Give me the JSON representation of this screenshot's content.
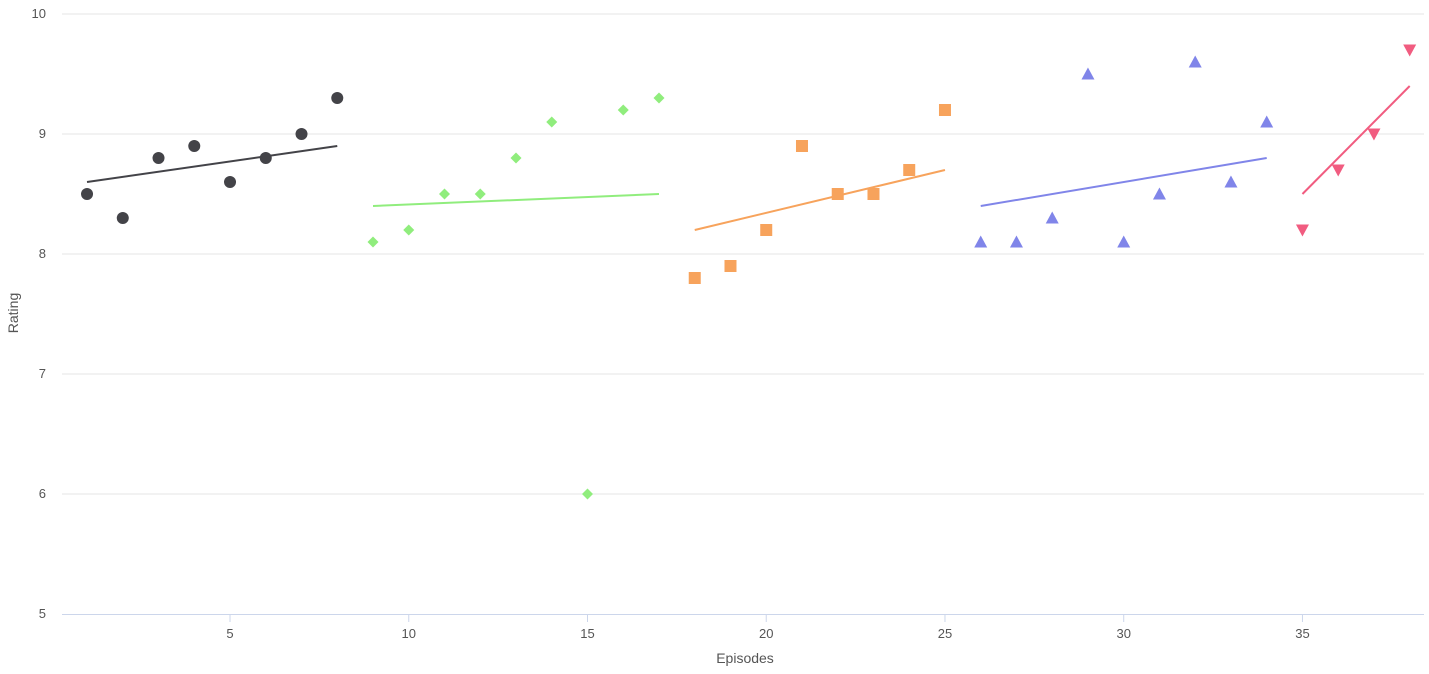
{
  "chart_data": {
    "type": "scatter",
    "xlabel": "Episodes",
    "ylabel": "Rating",
    "xlim": [
      0.3,
      38.4
    ],
    "ylim": [
      5,
      10
    ],
    "xticks": [
      5,
      10,
      15,
      20,
      25,
      30,
      35
    ],
    "yticks": [
      5,
      6,
      7,
      8,
      9,
      10
    ],
    "grid": true,
    "series": [
      {
        "marker": "circle",
        "color": "#434348",
        "points": [
          [
            1,
            8.5
          ],
          [
            2,
            8.3
          ],
          [
            3,
            8.8
          ],
          [
            4,
            8.9
          ],
          [
            5,
            8.6
          ],
          [
            6,
            8.8
          ],
          [
            7,
            9.0
          ],
          [
            8,
            9.3
          ]
        ],
        "trend": [
          [
            1,
            8.6
          ],
          [
            8,
            8.9
          ]
        ]
      },
      {
        "marker": "diamond",
        "color": "#90ed7d",
        "points": [
          [
            9,
            8.1
          ],
          [
            10,
            8.2
          ],
          [
            11,
            8.5
          ],
          [
            12,
            8.5
          ],
          [
            13,
            8.8
          ],
          [
            14,
            9.1
          ],
          [
            15,
            6.0
          ],
          [
            16,
            9.2
          ],
          [
            17,
            9.3
          ]
        ],
        "trend": [
          [
            9,
            8.4
          ],
          [
            17,
            8.5
          ]
        ]
      },
      {
        "marker": "square",
        "color": "#f7a35c",
        "points": [
          [
            18,
            7.8
          ],
          [
            19,
            7.9
          ],
          [
            20,
            8.2
          ],
          [
            21,
            8.9
          ],
          [
            22,
            8.5
          ],
          [
            23,
            8.5
          ],
          [
            24,
            8.7
          ],
          [
            25,
            9.2
          ]
        ],
        "trend": [
          [
            18,
            8.2
          ],
          [
            25,
            8.7
          ]
        ]
      },
      {
        "marker": "triangle",
        "color": "#8085e9",
        "points": [
          [
            26,
            8.1
          ],
          [
            27,
            8.1
          ],
          [
            28,
            8.3
          ],
          [
            29,
            9.5
          ],
          [
            30,
            8.1
          ],
          [
            31,
            8.5
          ],
          [
            32,
            9.6
          ],
          [
            33,
            8.6
          ],
          [
            34,
            9.1
          ]
        ],
        "trend": [
          [
            26,
            8.4
          ],
          [
            34,
            8.8
          ]
        ]
      },
      {
        "marker": "triangle-down",
        "color": "#f15c80",
        "points": [
          [
            35,
            8.2
          ],
          [
            36,
            8.7
          ],
          [
            37,
            9.0
          ],
          [
            38,
            9.7
          ]
        ],
        "trend": [
          [
            35,
            8.5
          ],
          [
            38,
            9.4
          ]
        ]
      }
    ]
  }
}
